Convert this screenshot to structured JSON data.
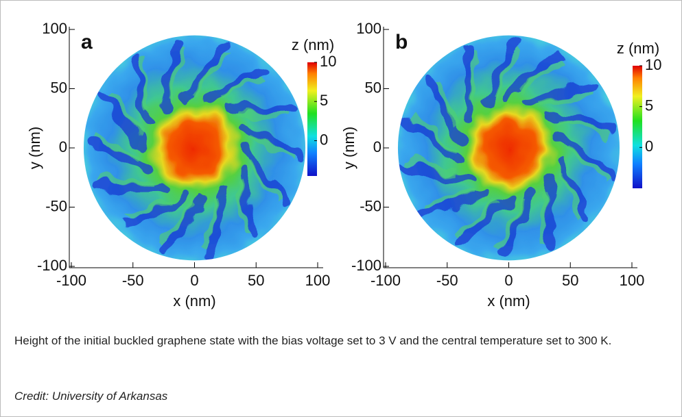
{
  "chart_data": [
    {
      "type": "heatmap",
      "panel_label": "a",
      "xlabel": "x (nm)",
      "ylabel": "y (nm)",
      "xlim": [
        -100,
        100
      ],
      "ylim": [
        -100,
        100
      ],
      "xticks": [
        -100,
        -50,
        0,
        50,
        100
      ],
      "yticks": [
        -100,
        -50,
        0,
        50,
        100
      ],
      "colorbar_label": "z (nm)",
      "zlim": [
        -4.5,
        10
      ],
      "zticks": [
        0,
        5,
        10
      ]
    },
    {
      "type": "heatmap",
      "panel_label": "b",
      "xlabel": "x (nm)",
      "ylabel": "y (nm)",
      "xlim": [
        -100,
        100
      ],
      "ylim": [
        -100,
        100
      ],
      "xticks": [
        -100,
        -50,
        0,
        50,
        100
      ],
      "yticks": [
        -100,
        -50,
        0,
        50,
        100
      ],
      "colorbar_label": "z (nm)",
      "zlim": [
        -5,
        10
      ],
      "zticks": [
        0,
        5,
        10
      ]
    }
  ],
  "caption": "Height of the initial buckled graphene state with the bias voltage set to 3 V and the central temperature set to 300 K.",
  "credit": "Credit: University of Arkansas"
}
